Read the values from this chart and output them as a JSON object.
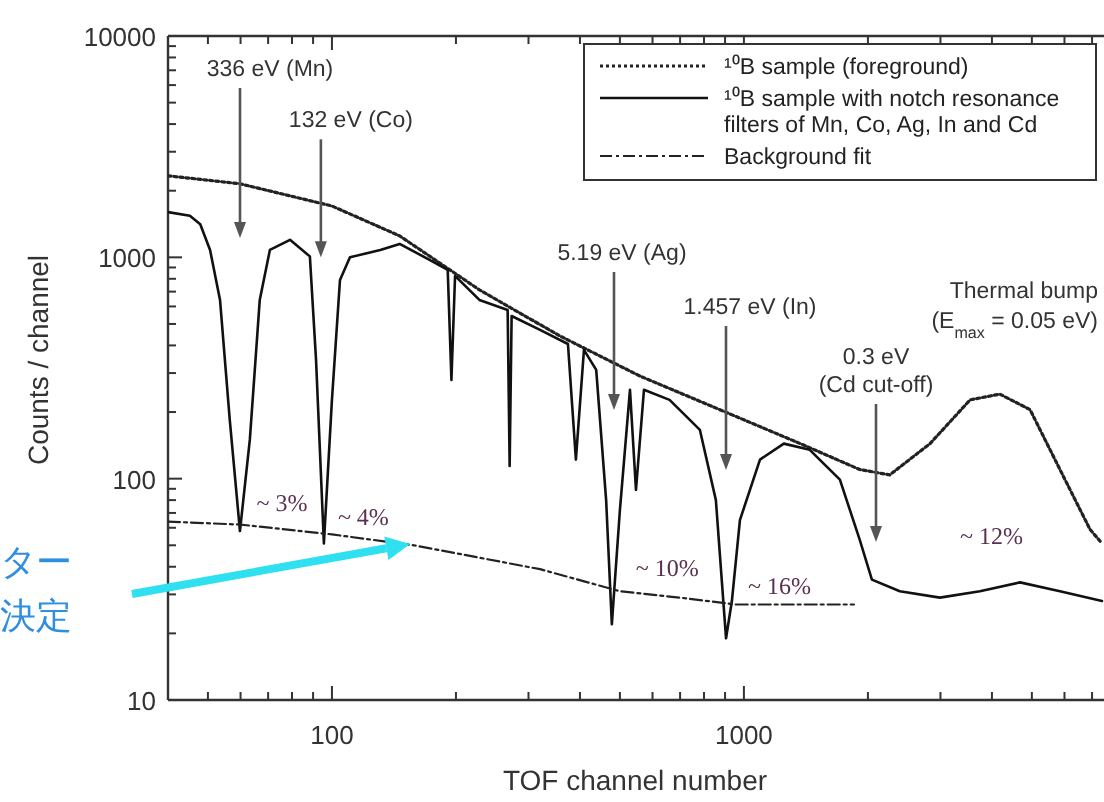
{
  "chart_data": {
    "type": "line",
    "xlabel": "TOF channel number",
    "ylabel": "Counts / channel",
    "log": "xy",
    "legend": "top right",
    "grid": false,
    "xlim": [
      40,
      7400
    ],
    "ylim": [
      10,
      10000
    ],
    "xticks": [
      {
        "value": 40,
        "label": null
      },
      {
        "value": 50,
        "label": null
      },
      {
        "value": 60,
        "label": null
      },
      {
        "value": 70,
        "label": null
      },
      {
        "value": 80,
        "label": null
      },
      {
        "value": 90,
        "label": null
      },
      100,
      {
        "value": 200,
        "label": null
      },
      {
        "value": 300,
        "label": null
      },
      {
        "value": 400,
        "label": null
      },
      {
        "value": 500,
        "label": null
      },
      {
        "value": 600,
        "label": null
      },
      {
        "value": 700,
        "label": null
      },
      {
        "value": 800,
        "label": null
      },
      {
        "value": 900,
        "label": null
      },
      1000,
      {
        "value": 2000,
        "label": null
      },
      {
        "value": 3000,
        "label": null
      },
      {
        "value": 4000,
        "label": null
      },
      {
        "value": 5000,
        "label": null
      },
      {
        "value": 6000,
        "label": null
      },
      {
        "value": 7000,
        "label": null
      }
    ],
    "yticks": [
      10,
      {
        "value": 20,
        "label": null
      },
      {
        "value": 30,
        "label": null
      },
      {
        "value": 40,
        "label": null
      },
      {
        "value": 50,
        "label": null
      },
      {
        "value": 60,
        "label": null
      },
      {
        "value": 70,
        "label": null
      },
      {
        "value": 80,
        "label": null
      },
      {
        "value": 90,
        "label": null
      },
      100,
      {
        "value": 200,
        "label": null
      },
      {
        "value": 300,
        "label": null
      },
      {
        "value": 400,
        "label": null
      },
      {
        "value": 500,
        "label": null
      },
      {
        "value": 600,
        "label": null
      },
      {
        "value": 700,
        "label": null
      },
      {
        "value": 800,
        "label": null
      },
      {
        "value": 900,
        "label": null
      },
      1000,
      {
        "value": 2000,
        "label": null
      },
      {
        "value": 3000,
        "label": null
      },
      {
        "value": 4000,
        "label": null
      },
      {
        "value": 5000,
        "label": null
      },
      {
        "value": 6000,
        "label": null
      },
      {
        "value": 7000,
        "label": null
      },
      {
        "value": 8000,
        "label": null
      },
      {
        "value": 9000,
        "label": null
      },
      10000
    ],
    "series": [
      {
        "name": "¹⁰B sample (foreground)",
        "color": "#222222",
        "line_style": "dotted",
        "x": [
          40,
          59.8,
          100,
          146,
          228,
          357,
          559,
          874,
          1370,
          1910,
          2260,
          2830,
          3540,
          4180,
          4950,
          5850,
          6920,
          7400
        ],
        "values": [
          2335,
          2150,
          1706,
          1250,
          713,
          442,
          291,
          205,
          144,
          110,
          104,
          144,
          227,
          241,
          205,
          110,
          59,
          51
        ]
      },
      {
        "name": "¹⁰B sample with notch resonance filters of Mn, Co, Ag, In and Cd",
        "color": "#111111",
        "line_style": "solid",
        "x": [
          40,
          45.2,
          47.9,
          50.6,
          53.5,
          56.5,
          59.8,
          63.2,
          66.8,
          70.7,
          79.1,
          88.4,
          91.5,
          95.6,
          100,
          104.6,
          110.6,
          131,
          146,
          173,
          191,
          195,
          199,
          228,
          267,
          270,
          273,
          320,
          374,
          391,
          409,
          438,
          463,
          478,
          500,
          529,
          547,
          572,
          660,
          782,
          855,
          905,
          935,
          978,
          1094,
          1250,
          1445,
          1710,
          1910,
          2045,
          2390,
          2990,
          3740,
          4680,
          5850,
          7400
        ],
        "values": [
          1600,
          1540,
          1410,
          1080,
          642,
          184,
          58,
          150,
          642,
          1080,
          1200,
          1010,
          344,
          51,
          227,
          790,
          1000,
          1080,
          1150,
          972,
          877,
          279,
          824,
          642,
          578,
          114,
          543,
          470,
          406,
          122,
          382,
          310,
          80,
          22,
          72,
          252,
          89,
          252,
          227,
          166,
          80,
          19,
          28,
          65,
          122,
          144,
          135,
          99,
          53,
          35,
          31,
          29,
          31,
          34,
          31,
          28
        ]
      },
      {
        "name": "Background fit",
        "color": "#222222",
        "line_style": "dashdot",
        "x": [
          40,
          60,
          100,
          158,
          320,
          500,
          700,
          955,
          1850
        ],
        "values": [
          64,
          62,
          56,
          50,
          39,
          31,
          29,
          27,
          27
        ]
      }
    ],
    "annotations": [
      "336 eV (Mn)",
      {
        "text": "132 eV (Co)",
        "x": 94,
        "y": 1000
      },
      "5.19 eV (Ag)",
      "1.457 eV (In)",
      "0.3 eV\n(Cd cut-off)",
      {
        "text": "Thermal bump\n(E$_{max}$ = 0.05 eV)",
        "x": 4180,
        "y": 241
      },
      {
        "text": "~ 3%",
        "x": 60,
        "y": 58
      },
      {
        "text": "~ 4%",
        "x": 95.6,
        "y": 51
      },
      {
        "text": "~ 10%",
        "x": 478,
        "y": 22
      },
      {
        "text": "~ 16%",
        "x": 905,
        "y": 19
      },
      "~ 12%",
      "ター決定"
    ]
  }
}
